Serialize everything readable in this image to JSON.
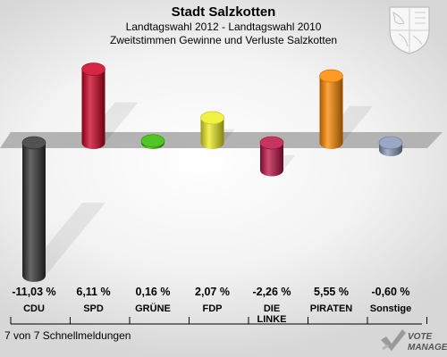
{
  "title": "Stadt Salzkotten",
  "subtitle1": "Landtagswahl 2012 - Landtagswahl 2010",
  "subtitle2": "Zweitstimmen Gewinne und Verluste Salzkotten",
  "footer": "7 von 7 Schnellmeldungen",
  "logo_text": [
    "VOTE",
    "MANAGER"
  ],
  "colors": {
    "CDU": "#333333",
    "SPD": "#cc0022",
    "GRÜNE": "#33bb00",
    "FDP": "#eeee22",
    "DIE LINKE": "#bb1144",
    "PIRATEN": "#ff8800",
    "Sonstige": "#8899bb"
  },
  "chart_data": {
    "type": "bar",
    "title": "Stadt Salzkotten",
    "subtitle": "Zweitstimmen Gewinne und Verluste Salzkotten",
    "categories": [
      "CDU",
      "SPD",
      "GRÜNE",
      "FDP",
      "DIE LINKE",
      "PIRATEN",
      "Sonstige"
    ],
    "values": [
      -11.03,
      6.11,
      0.16,
      2.07,
      -2.26,
      5.55,
      -0.6
    ],
    "value_labels": [
      "-11,03 %",
      "6,11 %",
      "0,16 %",
      "2,07 %",
      "-2,26 %",
      "5,55 %",
      "-0,60 %"
    ],
    "unit": "%",
    "legend": "none",
    "grid": false
  }
}
